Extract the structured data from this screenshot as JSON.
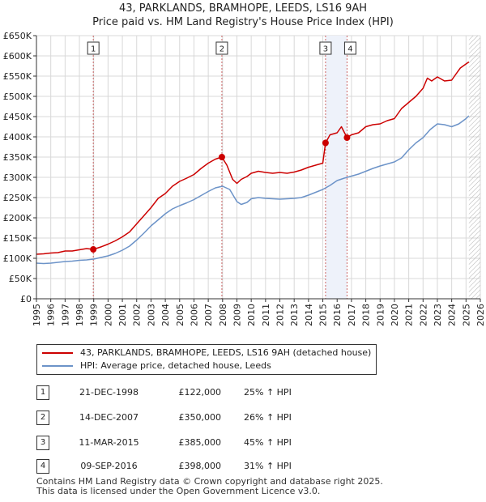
{
  "chart_data": {
    "type": "line",
    "title": "43, PARKLANDS, BRAMHOPE, LEEDS, LS16 9AH",
    "subtitle": "Price paid vs. HM Land Registry's House Price Index (HPI)",
    "xlabel": "",
    "ylabel": "",
    "xlim": [
      1995,
      2026
    ],
    "ylim": [
      0,
      650000
    ],
    "y_ticks": [
      {
        "value": 0,
        "label": "£0"
      },
      {
        "value": 50000,
        "label": "£50K"
      },
      {
        "value": 100000,
        "label": "£100K"
      },
      {
        "value": 150000,
        "label": "£150K"
      },
      {
        "value": 200000,
        "label": "£200K"
      },
      {
        "value": 250000,
        "label": "£250K"
      },
      {
        "value": 300000,
        "label": "£300K"
      },
      {
        "value": 350000,
        "label": "£350K"
      },
      {
        "value": 400000,
        "label": "£400K"
      },
      {
        "value": 450000,
        "label": "£450K"
      },
      {
        "value": 500000,
        "label": "£500K"
      },
      {
        "value": 550000,
        "label": "£550K"
      },
      {
        "value": 600000,
        "label": "£600K"
      },
      {
        "value": 650000,
        "label": "£650K"
      }
    ],
    "x_ticks": [
      "1995",
      "1996",
      "1997",
      "1998",
      "1999",
      "2000",
      "2001",
      "2002",
      "2003",
      "2004",
      "2005",
      "2006",
      "2007",
      "2008",
      "2009",
      "2010",
      "2011",
      "2012",
      "2013",
      "2014",
      "2015",
      "2016",
      "2017",
      "2018",
      "2019",
      "2020",
      "2021",
      "2022",
      "2023",
      "2024",
      "2025",
      "2026"
    ],
    "hatch_from": 2025.2,
    "series": [
      {
        "name": "43, PARKLANDS, BRAMHOPE, LEEDS, LS16 9AH (detached house)",
        "color": "#cc0000",
        "x": [
          1995.0,
          1995.5,
          1996.0,
          1996.5,
          1997.0,
          1997.5,
          1998.0,
          1998.5,
          1998.97,
          1999.5,
          2000.0,
          2000.5,
          2001.0,
          2001.5,
          2002.0,
          2002.5,
          2003.0,
          2003.5,
          2004.0,
          2004.5,
          2005.0,
          2005.5,
          2006.0,
          2006.5,
          2007.0,
          2007.5,
          2007.95,
          2008.3,
          2008.7,
          2009.0,
          2009.3,
          2009.7,
          2010.0,
          2010.5,
          2011.0,
          2011.5,
          2012.0,
          2012.5,
          2013.0,
          2013.5,
          2014.0,
          2014.5,
          2015.0,
          2015.19,
          2015.5,
          2016.0,
          2016.3,
          2016.69,
          2017.0,
          2017.5,
          2018.0,
          2018.5,
          2019.0,
          2019.5,
          2020.0,
          2020.5,
          2021.0,
          2021.5,
          2022.0,
          2022.3,
          2022.6,
          2023.0,
          2023.5,
          2024.0,
          2024.3,
          2024.6,
          2025.0,
          2025.2
        ],
        "values": [
          110000,
          111000,
          113000,
          114000,
          118000,
          118000,
          121000,
          124000,
          122000,
          128000,
          135000,
          143000,
          153000,
          165000,
          185000,
          205000,
          225000,
          248000,
          260000,
          278000,
          290000,
          298000,
          307000,
          322000,
          335000,
          345000,
          350000,
          330000,
          295000,
          285000,
          295000,
          302000,
          310000,
          315000,
          312000,
          310000,
          312000,
          310000,
          313000,
          318000,
          325000,
          330000,
          335000,
          385000,
          405000,
          410000,
          425000,
          398000,
          405000,
          410000,
          425000,
          430000,
          432000,
          440000,
          445000,
          470000,
          485000,
          500000,
          520000,
          545000,
          538000,
          548000,
          538000,
          540000,
          555000,
          570000,
          580000,
          585000
        ]
      },
      {
        "name": "HPI: Average price, detached house, Leeds",
        "color": "#6c93c8",
        "x": [
          1995.0,
          1995.5,
          1996.0,
          1996.5,
          1997.0,
          1997.5,
          1998.0,
          1998.5,
          1999.0,
          1999.5,
          2000.0,
          2000.5,
          2001.0,
          2001.5,
          2002.0,
          2002.5,
          2003.0,
          2003.5,
          2004.0,
          2004.5,
          2005.0,
          2005.5,
          2006.0,
          2006.5,
          2007.0,
          2007.5,
          2008.0,
          2008.5,
          2009.0,
          2009.3,
          2009.7,
          2010.0,
          2010.5,
          2011.0,
          2011.5,
          2012.0,
          2012.5,
          2013.0,
          2013.5,
          2014.0,
          2014.5,
          2015.0,
          2015.5,
          2016.0,
          2016.5,
          2017.0,
          2017.5,
          2018.0,
          2018.5,
          2019.0,
          2019.5,
          2020.0,
          2020.5,
          2021.0,
          2021.5,
          2022.0,
          2022.5,
          2023.0,
          2023.5,
          2024.0,
          2024.5,
          2025.0,
          2025.2
        ],
        "values": [
          88000,
          87000,
          88000,
          90000,
          92000,
          93000,
          95000,
          96000,
          98000,
          102000,
          106000,
          112000,
          120000,
          130000,
          145000,
          162000,
          180000,
          195000,
          210000,
          222000,
          230000,
          237000,
          245000,
          255000,
          265000,
          274000,
          278000,
          270000,
          240000,
          233000,
          238000,
          247000,
          250000,
          248000,
          247000,
          246000,
          247000,
          248000,
          250000,
          256000,
          263000,
          270000,
          280000,
          292000,
          298000,
          303000,
          308000,
          315000,
          322000,
          328000,
          333000,
          338000,
          348000,
          368000,
          385000,
          398000,
          418000,
          432000,
          430000,
          425000,
          432000,
          445000,
          452000
        ]
      }
    ],
    "sales": [
      {
        "label": "1",
        "x": 1998.97,
        "value": 122000,
        "date": "21-DEC-1998",
        "price": "£122,000",
        "hpi": "25% ↑ HPI"
      },
      {
        "label": "2",
        "x": 2007.95,
        "value": 350000,
        "date": "14-DEC-2007",
        "price": "£350,000",
        "hpi": "26% ↑ HPI"
      },
      {
        "label": "3",
        "x": 2015.19,
        "value": 385000,
        "date": "11-MAR-2015",
        "price": "£385,000",
        "hpi": "45% ↑ HPI"
      },
      {
        "label": "4",
        "x": 2016.69,
        "value": 398000,
        "date": "09-SEP-2016",
        "price": "£398,000",
        "hpi": "31% ↑ HPI"
      }
    ]
  },
  "legend": {
    "property_label": "43, PARKLANDS, BRAMHOPE, LEEDS, LS16 9AH (detached house)",
    "hpi_label": "HPI: Average price, detached house, Leeds",
    "property_color": "#cc0000",
    "hpi_color": "#6c93c8"
  },
  "sales_table": [
    {
      "num": "1",
      "date": "21-DEC-1998",
      "price": "£122,000",
      "hpi": "25% ↑ HPI"
    },
    {
      "num": "2",
      "date": "14-DEC-2007",
      "price": "£350,000",
      "hpi": "26% ↑ HPI"
    },
    {
      "num": "3",
      "date": "11-MAR-2015",
      "price": "£385,000",
      "hpi": "45% ↑ HPI"
    },
    {
      "num": "4",
      "date": "09-SEP-2016",
      "price": "£398,000",
      "hpi": "31% ↑ HPI"
    }
  ],
  "footer": {
    "line1": "Contains HM Land Registry data © Crown copyright and database right 2025.",
    "line2": "This data is licensed under the Open Government Licence v3.0."
  }
}
